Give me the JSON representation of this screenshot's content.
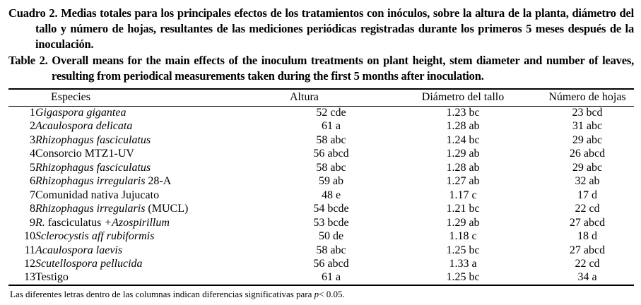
{
  "colors": {
    "text": "#000000",
    "background": "#ffffff",
    "rules": "#000000"
  },
  "captions": {
    "es": "Cuadro 2. Medias totales para los principales efectos de los tratamientos con inóculos, sobre la altura de la planta, diámetro del tallo y número de hojas, resultantes de las mediciones periódicas registradas durante los primeros 5 meses después de la inoculación.",
    "en": "Table 2. Overall means for the main effects of the inoculum treatments on plant height, stem diameter and number of leaves, resulting from periodical measurements taken during the first 5 months after inoculation."
  },
  "table": {
    "headers": {
      "especies": "Especies",
      "altura": "Altura",
      "diametro": "Diámetro del tallo",
      "hojas": "Número de hojas"
    },
    "rows": [
      {
        "num": "1",
        "species": [
          {
            "t": "Gigaspora gigantea",
            "i": true
          }
        ],
        "altura": "52 cde",
        "diametro": "1.23 bc",
        "hojas": "23 bcd"
      },
      {
        "num": "2",
        "species": [
          {
            "t": "Acaulospora delicata",
            "i": true
          }
        ],
        "altura": "61 a",
        "diametro": "1.28 ab",
        "hojas": "31 abc"
      },
      {
        "num": "3",
        "species": [
          {
            "t": "Rhizophagus fasciculatus",
            "i": true
          }
        ],
        "altura": "58 abc",
        "diametro": "1.24 bc",
        "hojas": "29 abc"
      },
      {
        "num": "4",
        "species": [
          {
            "t": "Consorcio MTZ1-UV",
            "i": false
          }
        ],
        "altura": "56 abcd",
        "diametro": "1.29 ab",
        "hojas": "26 abcd"
      },
      {
        "num": "5",
        "species": [
          {
            "t": "Rhizophagus fasciculatus",
            "i": true
          }
        ],
        "altura": "58 abc",
        "diametro": "1.28 ab",
        "hojas": "29 abc"
      },
      {
        "num": "6",
        "species": [
          {
            "t": "Rhizophagus irregularis",
            "i": true
          },
          {
            "t": " 28-A",
            "i": false
          }
        ],
        "altura": "59 ab",
        "diametro": "1.27 ab",
        "hojas": "32 ab"
      },
      {
        "num": "7",
        "species": [
          {
            "t": "Comunidad nativa Jujucato",
            "i": false
          }
        ],
        "altura": "48 e",
        "diametro": "1.17 c",
        "hojas": "17 d"
      },
      {
        "num": "8",
        "species": [
          {
            "t": "Rhizophagus irregularis",
            "i": true
          },
          {
            "t": " (MUCL)",
            "i": false
          }
        ],
        "altura": "54 bcde",
        "diametro": "1.21 bc",
        "hojas": "22 cd"
      },
      {
        "num": "9",
        "species": [
          {
            "t": "R.",
            "i": true
          },
          {
            "t": " fasciculatus ",
            "i": false
          },
          {
            "t": "+Azospirillum",
            "i": true
          }
        ],
        "altura": "53 bcde",
        "diametro": "1.29 ab",
        "hojas": "27 abcd"
      },
      {
        "num": "10",
        "species": [
          {
            "t": "Sclerocystis aff rubiformis",
            "i": true
          }
        ],
        "altura": "50 de",
        "diametro": "1.18 c",
        "hojas": "18 d"
      },
      {
        "num": "11",
        "species": [
          {
            "t": "Acaulospora laevis",
            "i": true
          }
        ],
        "altura": "58 abc",
        "diametro": "1.25 bc",
        "hojas": "27 abcd"
      },
      {
        "num": "12",
        "species": [
          {
            "t": "Scutellospora pellucida",
            "i": true
          }
        ],
        "altura": "56 abcd",
        "diametro": "1.33 a",
        "hojas": "22 cd"
      },
      {
        "num": "13",
        "species": [
          {
            "t": "Testigo",
            "i": false
          }
        ],
        "altura": "61 a",
        "diametro": "1.25 bc",
        "hojas": "34 a"
      }
    ]
  },
  "footnote": {
    "pre": "Las diferentes letras dentro de las columnas indican diferencias significativas para ",
    "italic": "p",
    "post": "< 0.05."
  }
}
